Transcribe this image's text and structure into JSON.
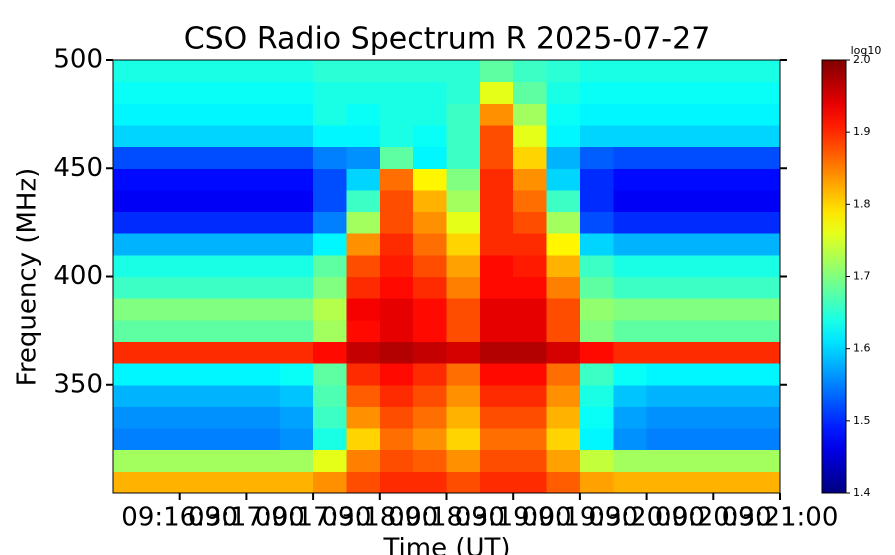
{
  "chart_data": {
    "type": "heatmap",
    "title": "CSO Radio Spectrum R 2025-07-27",
    "x_label": "Time (UT)",
    "y_label": "Frequency (MHz)",
    "xlim": [
      0,
      300
    ],
    "xticks": [
      {
        "value": 30,
        "label": "09:16:30"
      },
      {
        "value": 60,
        "label": "09:17:00"
      },
      {
        "value": 90,
        "label": "09:17:30"
      },
      {
        "value": 120,
        "label": "09:18:00"
      },
      {
        "value": 150,
        "label": "09:18:30"
      },
      {
        "value": 180,
        "label": "09:19:00"
      },
      {
        "value": 210,
        "label": "09:19:30"
      },
      {
        "value": 240,
        "label": "09:20:00"
      },
      {
        "value": 270,
        "label": "09:20:30"
      },
      {
        "value": 300,
        "label": "09:21:00"
      }
    ],
    "ylim": [
      300,
      500
    ],
    "yticks": [
      350,
      400,
      450,
      500
    ],
    "colormap": "jet",
    "clim": [
      1.4,
      2.0
    ],
    "cticks": [
      1.4,
      1.5,
      1.6,
      1.7,
      1.8,
      1.9,
      {
        "value": 2,
        "label": "2.0"
      }
    ],
    "colorbar_label": "log10",
    "values": [
      [
        1.82,
        1.82,
        1.82,
        1.82,
        1.82,
        1.82,
        1.84,
        1.88,
        1.9,
        1.9,
        1.88,
        1.9,
        1.9,
        1.87,
        1.83,
        1.82,
        1.82,
        1.82,
        1.82,
        1.82
      ],
      [
        1.72,
        1.72,
        1.72,
        1.72,
        1.72,
        1.72,
        1.76,
        1.85,
        1.88,
        1.87,
        1.84,
        1.88,
        1.88,
        1.83,
        1.74,
        1.72,
        1.72,
        1.72,
        1.72,
        1.72
      ],
      [
        1.55,
        1.55,
        1.55,
        1.55,
        1.55,
        1.56,
        1.64,
        1.8,
        1.86,
        1.84,
        1.8,
        1.86,
        1.86,
        1.8,
        1.62,
        1.56,
        1.55,
        1.55,
        1.55,
        1.55
      ],
      [
        1.56,
        1.56,
        1.56,
        1.56,
        1.56,
        1.57,
        1.66,
        1.84,
        1.88,
        1.86,
        1.82,
        1.88,
        1.88,
        1.82,
        1.63,
        1.57,
        1.56,
        1.56,
        1.56,
        1.56
      ],
      [
        1.58,
        1.58,
        1.58,
        1.58,
        1.58,
        1.59,
        1.67,
        1.87,
        1.9,
        1.88,
        1.84,
        1.9,
        1.9,
        1.84,
        1.64,
        1.59,
        1.58,
        1.58,
        1.58,
        1.58
      ],
      [
        1.62,
        1.62,
        1.62,
        1.62,
        1.62,
        1.63,
        1.68,
        1.9,
        1.92,
        1.9,
        1.86,
        1.92,
        1.92,
        1.86,
        1.66,
        1.63,
        1.62,
        1.62,
        1.62,
        1.62
      ],
      [
        1.9,
        1.9,
        1.9,
        1.9,
        1.9,
        1.9,
        1.92,
        1.96,
        1.97,
        1.96,
        1.95,
        1.97,
        1.97,
        1.95,
        1.92,
        1.9,
        1.9,
        1.9,
        1.9,
        1.9
      ],
      [
        1.68,
        1.68,
        1.68,
        1.68,
        1.68,
        1.68,
        1.72,
        1.92,
        1.94,
        1.92,
        1.88,
        1.94,
        1.94,
        1.88,
        1.7,
        1.68,
        1.68,
        1.68,
        1.68,
        1.68
      ],
      [
        1.7,
        1.7,
        1.7,
        1.7,
        1.7,
        1.7,
        1.73,
        1.93,
        1.94,
        1.92,
        1.88,
        1.94,
        1.94,
        1.88,
        1.71,
        1.7,
        1.7,
        1.7,
        1.7,
        1.7
      ],
      [
        1.66,
        1.66,
        1.66,
        1.66,
        1.66,
        1.66,
        1.7,
        1.9,
        1.92,
        1.9,
        1.85,
        1.92,
        1.92,
        1.85,
        1.68,
        1.66,
        1.66,
        1.66,
        1.66,
        1.66
      ],
      [
        1.64,
        1.64,
        1.64,
        1.64,
        1.64,
        1.64,
        1.68,
        1.88,
        1.91,
        1.88,
        1.83,
        1.92,
        1.91,
        1.82,
        1.66,
        1.64,
        1.64,
        1.64,
        1.64,
        1.64
      ],
      [
        1.58,
        1.58,
        1.58,
        1.58,
        1.58,
        1.58,
        1.62,
        1.84,
        1.9,
        1.86,
        1.8,
        1.9,
        1.9,
        1.78,
        1.6,
        1.58,
        1.58,
        1.58,
        1.58,
        1.58
      ],
      [
        1.5,
        1.5,
        1.5,
        1.5,
        1.5,
        1.5,
        1.55,
        1.72,
        1.88,
        1.84,
        1.76,
        1.9,
        1.88,
        1.72,
        1.52,
        1.5,
        1.5,
        1.5,
        1.5,
        1.5
      ],
      [
        1.47,
        1.47,
        1.47,
        1.47,
        1.47,
        1.47,
        1.52,
        1.66,
        1.88,
        1.82,
        1.72,
        1.9,
        1.86,
        1.66,
        1.5,
        1.47,
        1.47,
        1.47,
        1.47,
        1.47
      ],
      [
        1.48,
        1.48,
        1.48,
        1.48,
        1.48,
        1.48,
        1.52,
        1.6,
        1.86,
        1.78,
        1.7,
        1.9,
        1.84,
        1.6,
        1.5,
        1.48,
        1.48,
        1.48,
        1.48,
        1.48
      ],
      [
        1.52,
        1.52,
        1.52,
        1.52,
        1.52,
        1.52,
        1.55,
        1.56,
        1.68,
        1.62,
        1.66,
        1.88,
        1.8,
        1.58,
        1.53,
        1.52,
        1.52,
        1.52,
        1.52,
        1.52
      ],
      [
        1.6,
        1.6,
        1.6,
        1.6,
        1.6,
        1.6,
        1.62,
        1.62,
        1.64,
        1.63,
        1.66,
        1.88,
        1.76,
        1.62,
        1.6,
        1.6,
        1.6,
        1.6,
        1.6,
        1.6
      ],
      [
        1.62,
        1.62,
        1.62,
        1.62,
        1.62,
        1.62,
        1.64,
        1.63,
        1.64,
        1.64,
        1.66,
        1.84,
        1.72,
        1.63,
        1.62,
        1.62,
        1.62,
        1.62,
        1.62,
        1.62
      ],
      [
        1.63,
        1.63,
        1.63,
        1.63,
        1.63,
        1.63,
        1.64,
        1.64,
        1.64,
        1.64,
        1.65,
        1.76,
        1.68,
        1.64,
        1.63,
        1.63,
        1.63,
        1.63,
        1.63,
        1.63
      ],
      [
        1.64,
        1.64,
        1.64,
        1.64,
        1.64,
        1.64,
        1.65,
        1.65,
        1.65,
        1.65,
        1.65,
        1.68,
        1.66,
        1.65,
        1.64,
        1.64,
        1.64,
        1.64,
        1.64,
        1.64
      ]
    ]
  }
}
